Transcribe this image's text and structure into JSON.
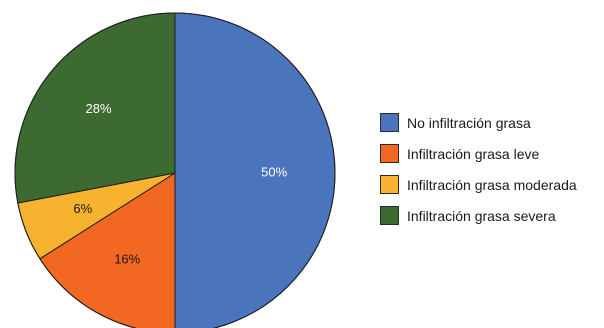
{
  "chart_data": {
    "type": "pie",
    "categories": [
      "No infiltración grasa",
      "Infiltración grasa leve",
      "Infiltración grasa moderada",
      "Infiltración grasa severa"
    ],
    "values": [
      50,
      16,
      6,
      28
    ],
    "value_labels": [
      "50%",
      "16%",
      "6%",
      "28%"
    ],
    "colors": [
      "#4a74bb",
      "#f26722",
      "#f7b230",
      "#3c6a30"
    ],
    "label_colors": [
      "#ffffff",
      "#1a1a1a",
      "#1a1a1a",
      "#ffffff"
    ],
    "start_angle": "12 o'clock",
    "direction": "clockwise",
    "legend": "right"
  }
}
